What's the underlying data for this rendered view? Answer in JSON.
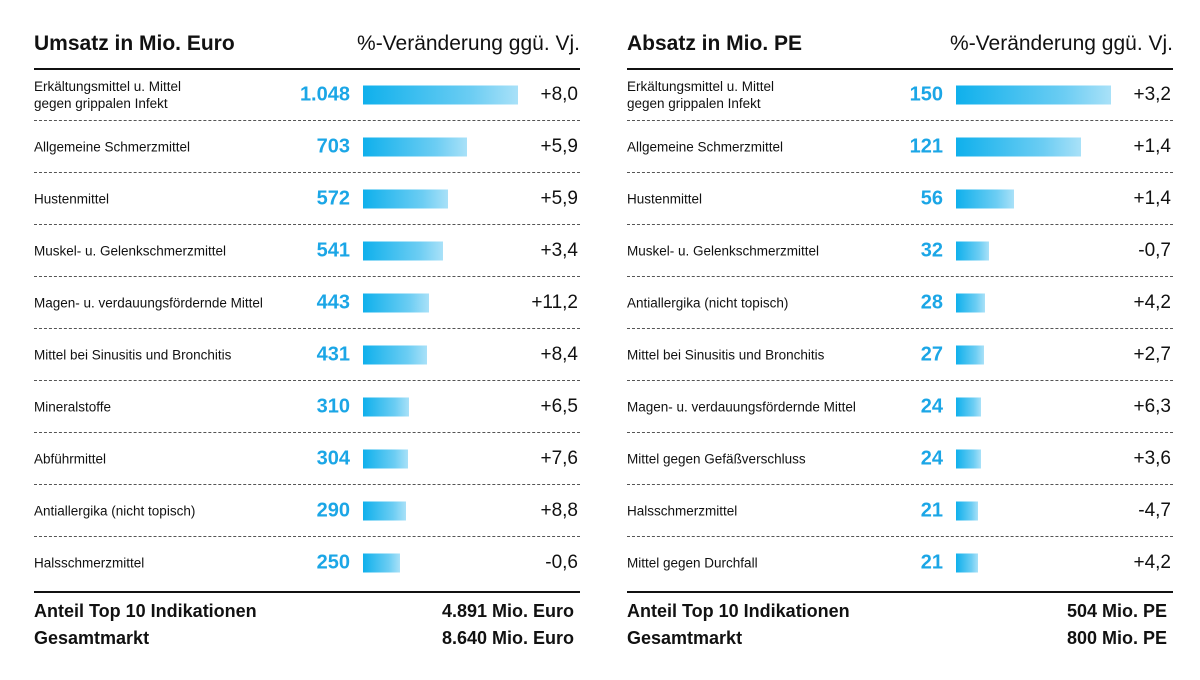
{
  "chart_data": [
    {
      "type": "bar",
      "title": "Umsatz in Mio. Euro",
      "change_header": "%-Veränderung ggü. Vj.",
      "categories": [
        "Erkältungsmittel u. Mittel\ngegen grippalen Infekt",
        "Allgemeine Schmerzmittel",
        "Hustenmittel",
        "Muskel- u. Gelenkschmerzmittel",
        "Magen- u. verdauungsfördernde Mittel",
        "Mittel bei Sinusitis und Bronchitis",
        "Mineralstoffe",
        "Abführmittel",
        "Antiallergika (nicht topisch)",
        "Halsschmerzmittel"
      ],
      "values": [
        1048,
        703,
        572,
        541,
        443,
        431,
        310,
        304,
        290,
        250
      ],
      "value_labels": [
        "1.048",
        "703",
        "572",
        "541",
        "443",
        "431",
        "310",
        "304",
        "290",
        "250"
      ],
      "changes": [
        "+8,0",
        "+5,9",
        "+5,9",
        "+3,4",
        "+11,2",
        "+8,4",
        "+6,5",
        "+7,6",
        "+8,8",
        "-0,6"
      ],
      "footer": [
        {
          "label": "Anteil Top 10 Indikationen",
          "value": "4.891 Mio. Euro"
        },
        {
          "label": "Gesamtmarkt",
          "value": "8.640 Mio. Euro"
        }
      ]
    },
    {
      "type": "bar",
      "title": "Absatz in Mio. PE",
      "change_header": "%-Veränderung ggü. Vj.",
      "categories": [
        "Erkältungsmittel u. Mittel\ngegen grippalen Infekt",
        "Allgemeine Schmerzmittel",
        "Hustenmittel",
        "Muskel- u. Gelenkschmerzmittel",
        "Antiallergika (nicht topisch)",
        "Mittel bei Sinusitis und Bronchitis",
        "Magen- u. verdauungsfördernde Mittel",
        "Mittel gegen Gefäßverschluss",
        "Halsschmerzmittel",
        "Mittel gegen Durchfall"
      ],
      "values": [
        150,
        121,
        56,
        32,
        28,
        27,
        24,
        24,
        21,
        21
      ],
      "value_labels": [
        "150",
        "121",
        "56",
        "32",
        "28",
        "27",
        "24",
        "24",
        "21",
        "21"
      ],
      "changes": [
        "+3,2",
        "+1,4",
        "+1,4",
        "-0,7",
        "+4,2",
        "+2,7",
        "+6,3",
        "+3,6",
        "-4,7",
        "+4,2"
      ],
      "footer": [
        {
          "label": "Anteil Top 10 Indikationen",
          "value": "504 Mio. PE"
        },
        {
          "label": "Gesamtmarkt",
          "value": "800 Mio. PE"
        }
      ]
    }
  ],
  "colors": {
    "value_text": "#1ba6e6",
    "bar_start": "#0fb0ec",
    "bar_end": "#a9e1f8"
  }
}
